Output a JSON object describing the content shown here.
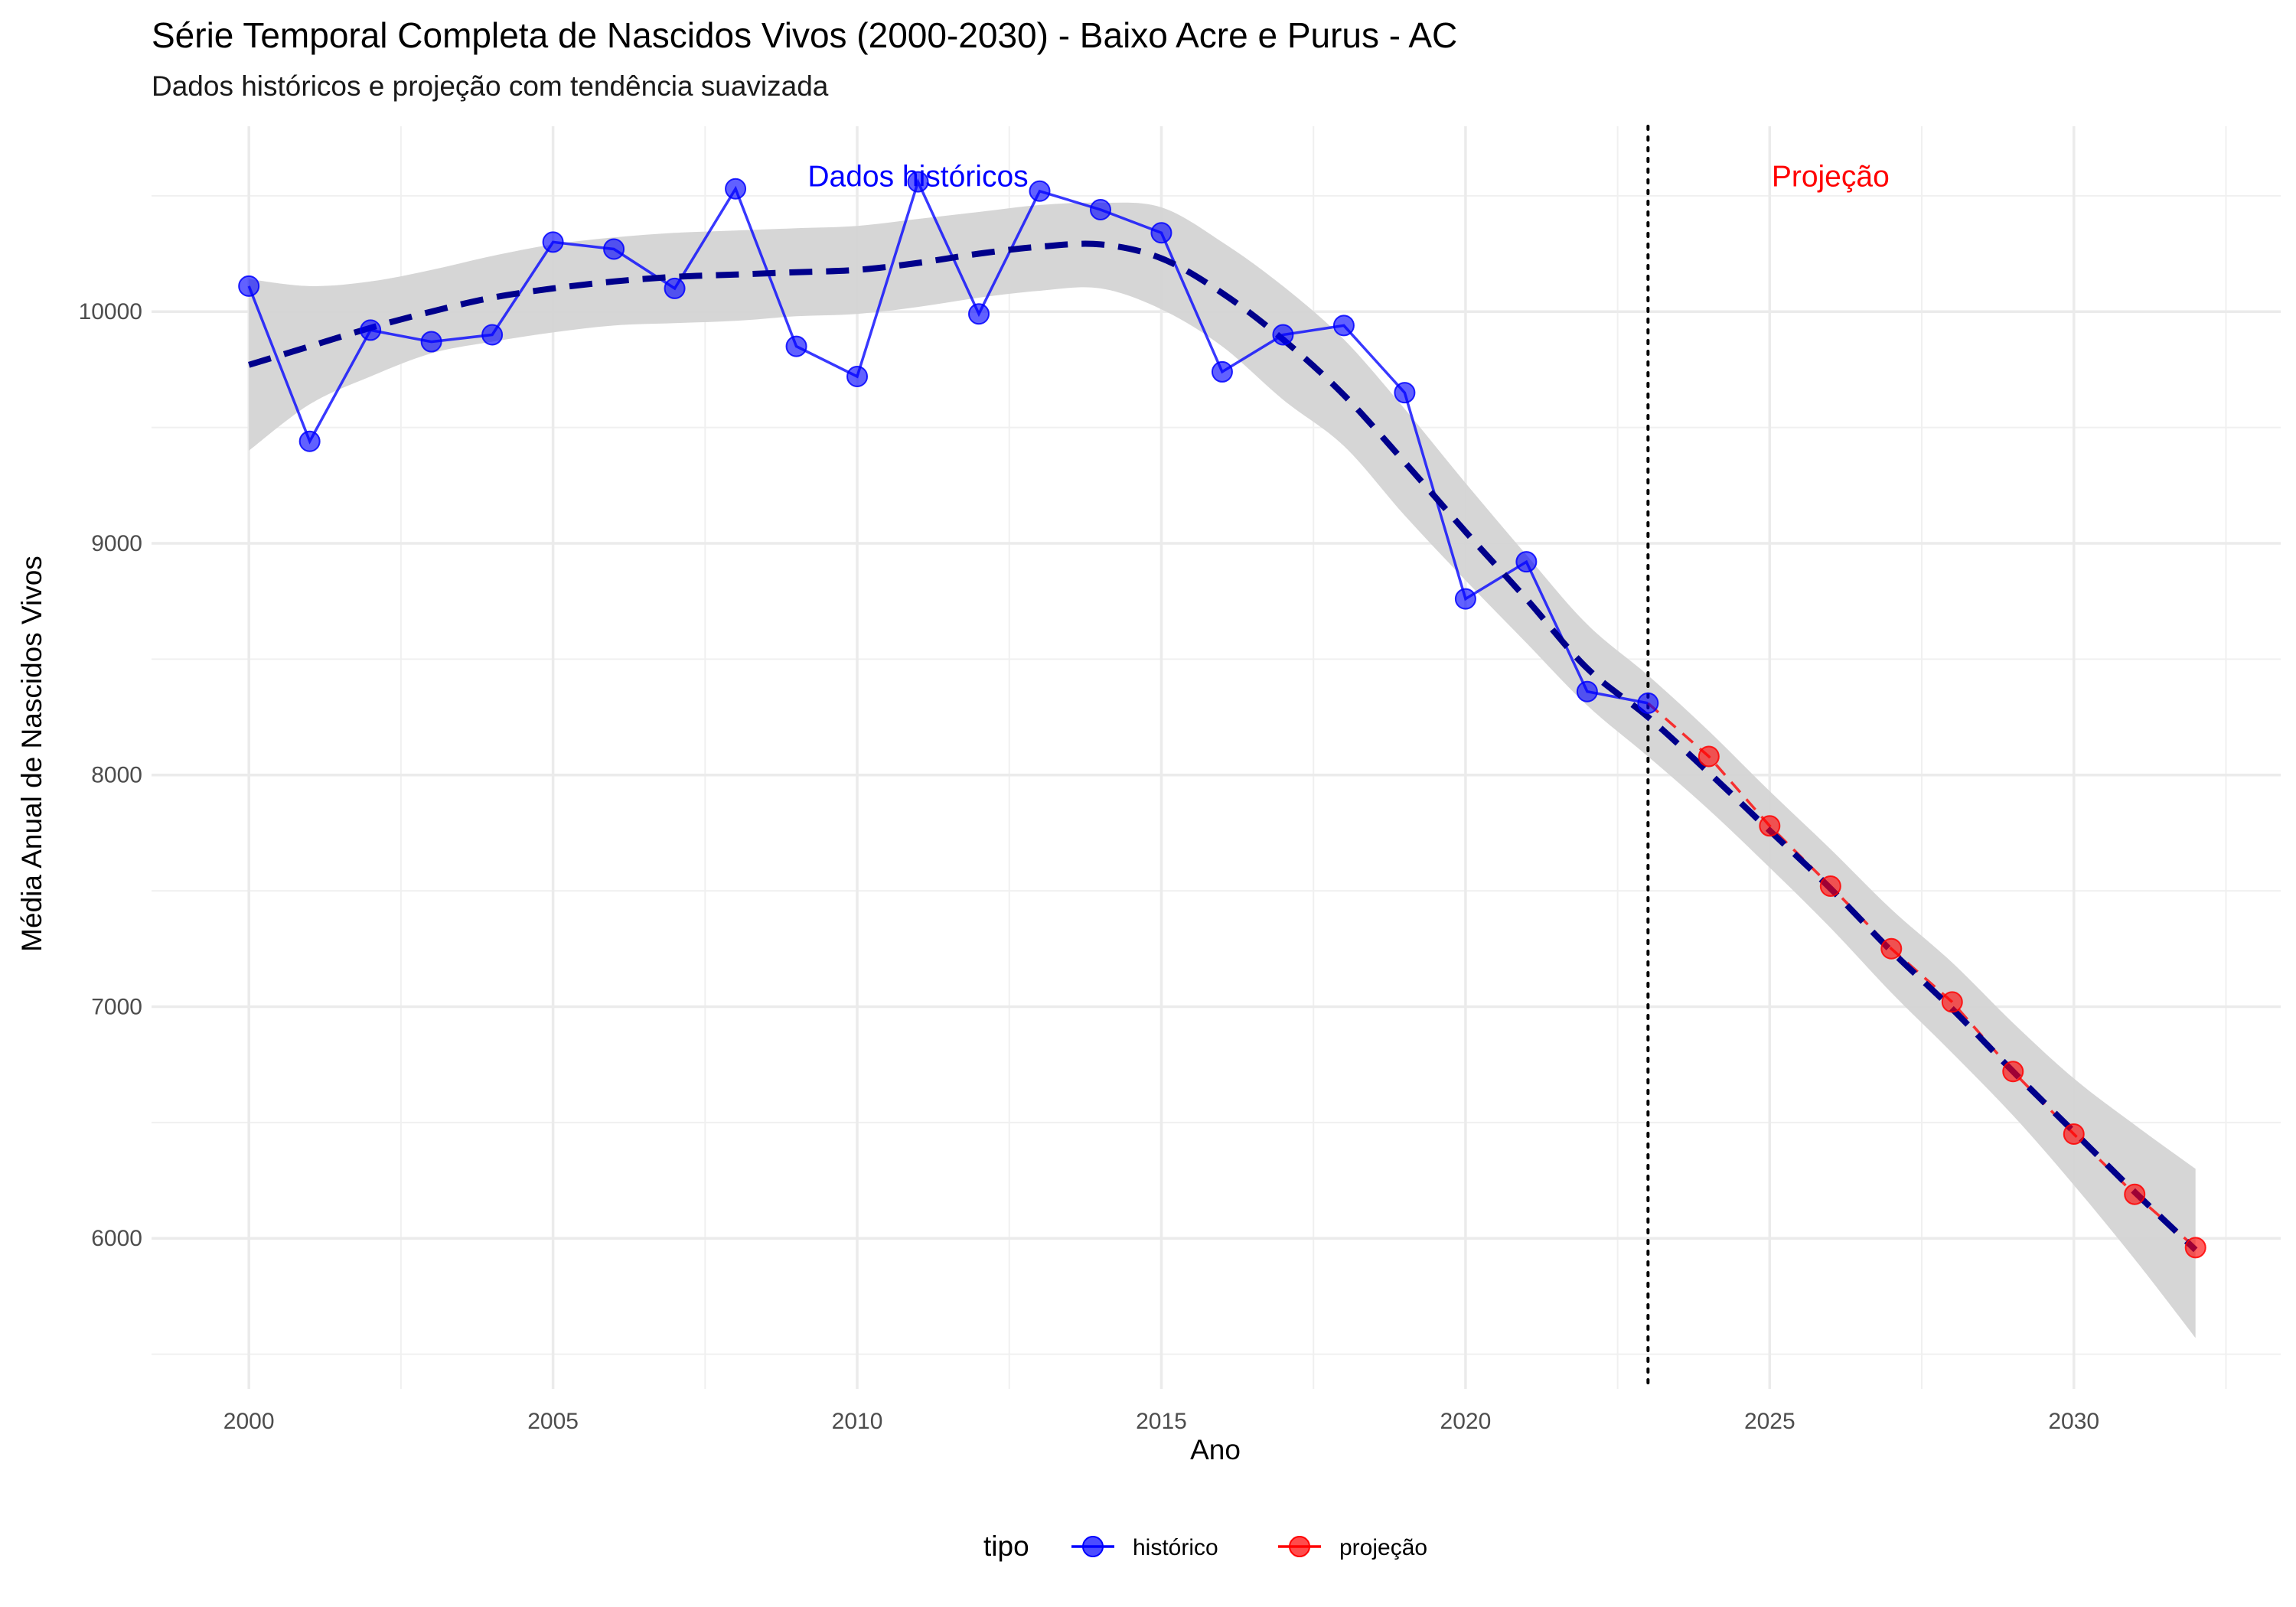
{
  "chart_data": {
    "type": "line",
    "title": "Série Temporal Completa de Nascidos Vivos (2000-2030) -  Baixo Acre e Purus - AC",
    "subtitle": "Dados históricos e projeção com tendência suavizada",
    "xlabel": "Ano",
    "ylabel": "Média Anual de Nascidos Vivos",
    "xlim": [
      1998.4,
      2033.4
    ],
    "ylim": [
      5350,
      10800
    ],
    "x_ticks": [
      2000,
      2005,
      2010,
      2015,
      2020,
      2025,
      2030
    ],
    "x_tick_labels": [
      "2000",
      "2005",
      "2010",
      "2015",
      "2020",
      "2025",
      "2030"
    ],
    "y_ticks": [
      6000,
      7000,
      8000,
      9000,
      10000
    ],
    "y_tick_labels": [
      "6000",
      "7000",
      "8000",
      "9000",
      "10000"
    ],
    "grid": true,
    "cutoff_year": 2023,
    "series": [
      {
        "name": "histórico",
        "color": "#0000ff",
        "x": [
          2000,
          2001,
          2002,
          2003,
          2004,
          2005,
          2006,
          2007,
          2008,
          2009,
          2010,
          2011,
          2012,
          2013,
          2014,
          2015,
          2016,
          2017,
          2018,
          2019,
          2020,
          2021,
          2022,
          2023
        ],
        "y": [
          10110,
          9440,
          9920,
          9870,
          9900,
          10300,
          10270,
          10100,
          10530,
          9850,
          9720,
          10560,
          9990,
          10520,
          10440,
          10340,
          9740,
          9900,
          9940,
          9650,
          8760,
          8920,
          8360,
          8310
        ]
      },
      {
        "name": "projeção",
        "color": "#ff0000",
        "x": [
          2024,
          2025,
          2026,
          2027,
          2028,
          2029,
          2030,
          2031,
          2032
        ],
        "y": [
          8080,
          7780,
          7520,
          7250,
          7020,
          6720,
          6450,
          6190,
          5960
        ]
      }
    ],
    "trend": {
      "color": "#00008b",
      "band_color": "#d4d4d4",
      "x": [
        2000,
        2001,
        2002,
        2003,
        2004,
        2005,
        2006,
        2007,
        2008,
        2009,
        2010,
        2011,
        2012,
        2013,
        2014,
        2015,
        2016,
        2017,
        2018,
        2019,
        2020,
        2021,
        2022,
        2023,
        2024,
        2025,
        2026,
        2027,
        2028,
        2029,
        2030,
        2031,
        2032
      ],
      "y": [
        9770,
        9850,
        9930,
        10000,
        10060,
        10100,
        10130,
        10150,
        10160,
        10170,
        10180,
        10210,
        10250,
        10280,
        10290,
        10230,
        10080,
        9880,
        9640,
        9350,
        9050,
        8760,
        8460,
        8250,
        8010,
        7760,
        7510,
        7240,
        6990,
        6720,
        6460,
        6200,
        5950
      ],
      "lower": [
        9400,
        9600,
        9720,
        9820,
        9870,
        9910,
        9940,
        9950,
        9960,
        9980,
        9990,
        10020,
        10060,
        10090,
        10100,
        10010,
        9850,
        9620,
        9420,
        9120,
        8840,
        8570,
        8300,
        8080,
        7850,
        7600,
        7340,
        7060,
        6800,
        6530,
        6230,
        5910,
        5570
      ],
      "upper": [
        10140,
        10110,
        10130,
        10180,
        10240,
        10290,
        10320,
        10340,
        10350,
        10360,
        10370,
        10400,
        10430,
        10460,
        10470,
        10450,
        10300,
        10110,
        9880,
        9580,
        9260,
        8950,
        8650,
        8430,
        8190,
        7930,
        7680,
        7420,
        7190,
        6930,
        6690,
        6490,
        6300
      ]
    },
    "annotations": [
      {
        "text": "Dados históricos",
        "x": 2011,
        "y": 10540,
        "color": "#0000ff"
      },
      {
        "text": "Projeção",
        "x": 2026,
        "y": 10540,
        "color": "#ff0000"
      }
    ],
    "legend": {
      "title": "tipo",
      "position": "bottom",
      "items": [
        {
          "label": "histórico",
          "color": "#0000ff"
        },
        {
          "label": "projeção",
          "color": "#ff0000"
        }
      ]
    }
  }
}
